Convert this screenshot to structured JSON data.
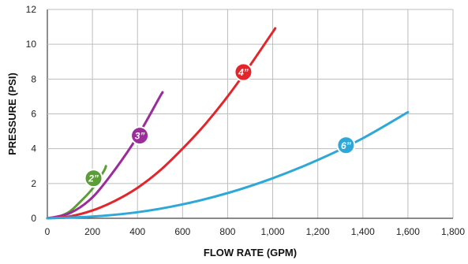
{
  "chart_data": {
    "type": "line",
    "title": "",
    "xlabel": "FLOW RATE (GPM)",
    "ylabel": "PRESSURE (PSI)",
    "xlim": [
      0,
      1800
    ],
    "ylim": [
      0,
      12
    ],
    "x_ticks": [
      0,
      200,
      400,
      600,
      800,
      1000,
      1200,
      1400,
      1600,
      1800
    ],
    "x_tick_labels": [
      "0",
      "200",
      "400",
      "600",
      "800",
      "1,000",
      "1,200",
      "1,400",
      "1,600",
      "1,800"
    ],
    "y_ticks": [
      0,
      2,
      4,
      6,
      8,
      10,
      12
    ],
    "y_tick_labels": [
      "0",
      "2",
      "4",
      "6",
      "8",
      "10",
      "12"
    ],
    "grid": true,
    "series": [
      {
        "name": "2”",
        "color": "#5a9e35",
        "label_at": [
          205,
          2.3
        ],
        "x": [
          0,
          50,
          100,
          150,
          200,
          250,
          260
        ],
        "y": [
          0,
          0.1,
          0.4,
          1.0,
          1.7,
          2.7,
          3.0
        ]
      },
      {
        "name": "3”",
        "color": "#9b2c9a",
        "label_at": [
          410,
          4.75
        ],
        "x": [
          0,
          100,
          200,
          300,
          400,
          500,
          510
        ],
        "y": [
          0,
          0.3,
          1.2,
          2.8,
          4.7,
          7.0,
          7.2
        ]
      },
      {
        "name": "4”",
        "color": "#e3262b",
        "label_at": [
          870,
          8.4
        ],
        "x": [
          0,
          100,
          200,
          300,
          400,
          500,
          600,
          700,
          800,
          900,
          1000,
          1010
        ],
        "y": [
          0,
          0.11,
          0.45,
          1.0,
          1.75,
          2.75,
          4.0,
          5.4,
          7.0,
          8.8,
          10.7,
          10.9
        ]
      },
      {
        "name": "6”",
        "color": "#2ea8d8",
        "label_at": [
          1325,
          4.2
        ],
        "x": [
          0,
          200,
          400,
          600,
          800,
          1000,
          1200,
          1400,
          1600
        ],
        "y": [
          0,
          0.1,
          0.35,
          0.8,
          1.45,
          2.3,
          3.35,
          4.6,
          6.1
        ]
      }
    ]
  }
}
